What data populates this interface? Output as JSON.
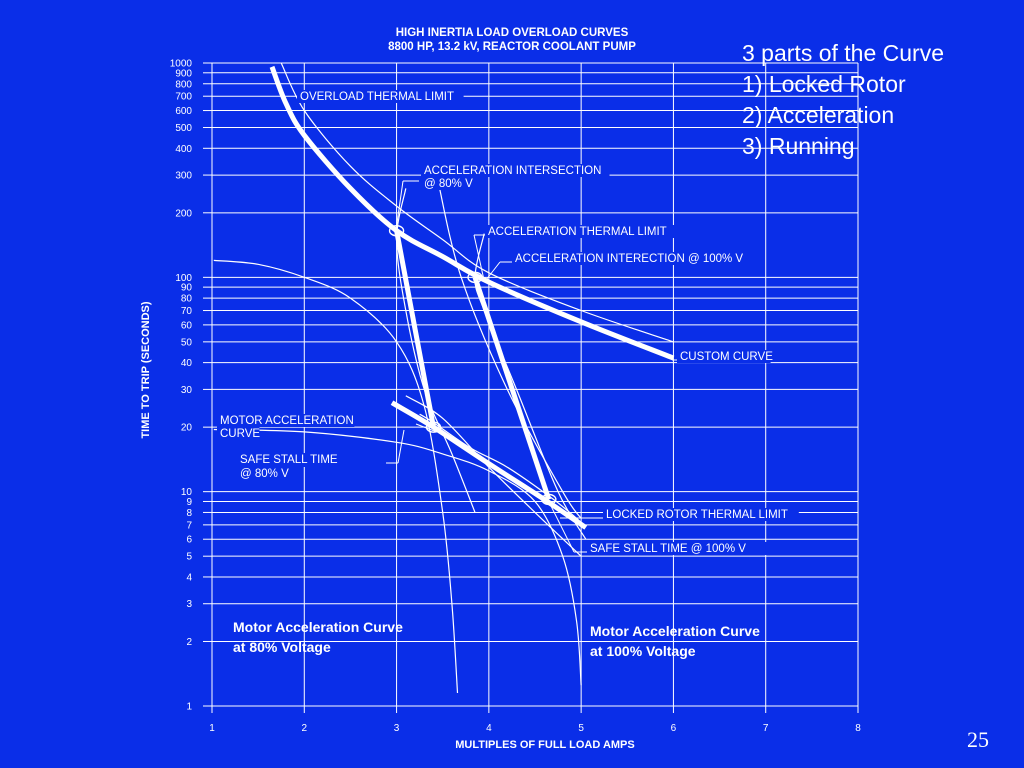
{
  "slide": {
    "notes": [
      "3 parts of the Curve",
      "1) Locked Rotor",
      "2) Acceleration",
      "3) Running"
    ],
    "page_number": "25"
  },
  "colors": {
    "background": "#0a2ee8",
    "foreground": "#ffffff"
  },
  "chart_data": {
    "type": "line",
    "title": "HIGH INERTIA LOAD OVERLOAD CURVES",
    "subtitle": "8800 HP, 13.2 kV, REACTOR COOLANT PUMP",
    "xlabel": "MULTIPLES OF FULL LOAD AMPS",
    "ylabel": "TIME TO TRIP (SECONDS)",
    "x_scale": "linear",
    "y_scale": "log",
    "xlim": [
      1,
      8
    ],
    "ylim": [
      1,
      1000
    ],
    "grid": true,
    "x_ticks": [
      "1",
      "2",
      "3",
      "4",
      "5",
      "6",
      "7",
      "8"
    ],
    "y_ticks": [
      {
        "v": 1,
        "label": "1"
      },
      {
        "v": 2,
        "label": "2"
      },
      {
        "v": 3,
        "label": "3"
      },
      {
        "v": 4,
        "label": "4"
      },
      {
        "v": 5,
        "label": "5"
      },
      {
        "v": 6,
        "label": "6"
      },
      {
        "v": 7,
        "label": "7"
      },
      {
        "v": 8,
        "label": "8"
      },
      {
        "v": 9,
        "label": "9"
      },
      {
        "v": 10,
        "label": "10"
      },
      {
        "v": 20,
        "label": "20"
      },
      {
        "v": 30,
        "label": "30"
      },
      {
        "v": 40,
        "label": "40"
      },
      {
        "v": 50,
        "label": "50"
      },
      {
        "v": 60,
        "label": "60"
      },
      {
        "v": 70,
        "label": "70"
      },
      {
        "v": 80,
        "label": "80"
      },
      {
        "v": 90,
        "label": "90"
      },
      {
        "v": 100,
        "label": "100"
      },
      {
        "v": 200,
        "label": "200"
      },
      {
        "v": 300,
        "label": "300"
      },
      {
        "v": 400,
        "label": "400"
      },
      {
        "v": 500,
        "label": "500"
      },
      {
        "v": 600,
        "label": "600"
      },
      {
        "v": 700,
        "label": "700"
      },
      {
        "v": 800,
        "label": "800"
      },
      {
        "v": 900,
        "label": "900"
      },
      {
        "v": 1000,
        "label": "1000"
      }
    ],
    "series": [
      {
        "name": "CUSTOM CURVE",
        "weight": "bold",
        "points": [
          [
            1.65,
            960
          ],
          [
            1.8,
            650
          ],
          [
            2.0,
            460
          ],
          [
            2.5,
            260
          ],
          [
            3.0,
            165
          ],
          [
            3.5,
            125
          ],
          [
            4.0,
            95
          ],
          [
            5.0,
            62
          ],
          [
            6.0,
            42
          ]
        ]
      },
      {
        "name": "LOCKED ROTOR",
        "weight": "bold",
        "points": [
          [
            3.0,
            165
          ],
          [
            3.4,
            20
          ]
        ]
      },
      {
        "name": "LOCKED ROTOR",
        "weight": "bold",
        "points": [
          [
            3.85,
            100
          ],
          [
            4.65,
            9.2
          ]
        ]
      },
      {
        "name": "ACCELERATION",
        "weight": "bold",
        "points": [
          [
            2.95,
            26
          ],
          [
            3.4,
            20
          ],
          [
            4.0,
            13.5
          ],
          [
            4.6,
            9.2
          ],
          [
            5.05,
            6.8
          ]
        ]
      },
      {
        "name": "OVERLOAD THERMAL LIMIT",
        "weight": "thin",
        "points": [
          [
            1.75,
            1000
          ],
          [
            2.0,
            600
          ],
          [
            2.5,
            330
          ],
          [
            3.0,
            215
          ],
          [
            3.5,
            150
          ],
          [
            4.0,
            105
          ],
          [
            5.0,
            70
          ],
          [
            6.0,
            50
          ]
        ]
      },
      {
        "name": "ACCELERATION THERMAL LIMIT",
        "weight": "thin",
        "points": [
          [
            3.45,
            280
          ],
          [
            3.7,
            100
          ],
          [
            4.2,
            30
          ],
          [
            4.8,
            10
          ],
          [
            5.0,
            7.5
          ]
        ]
      },
      {
        "name": "LOCKED ROTOR THERMAL LIMIT",
        "weight": "thin",
        "points": [
          [
            3.25,
            23
          ],
          [
            3.4,
            21
          ],
          [
            3.8,
            16
          ],
          [
            4.2,
            13
          ],
          [
            4.7,
            9.2
          ],
          [
            5.0,
            7.2
          ]
        ]
      },
      {
        "name": "Motor Acceleration Curve at 80% Voltage",
        "weight": "thin",
        "points": [
          [
            1.02,
            120
          ],
          [
            1.5,
            115
          ],
          [
            2.0,
            100
          ],
          [
            2.5,
            80
          ],
          [
            3.0,
            50
          ],
          [
            3.3,
            25
          ],
          [
            3.5,
            8
          ],
          [
            3.6,
            3
          ],
          [
            3.66,
            1.15
          ]
        ]
      },
      {
        "name": "Motor Acceleration Curve at 100% Voltage",
        "weight": "thin",
        "points": [
          [
            1.02,
            19.5
          ],
          [
            2.0,
            19
          ],
          [
            3.0,
            17
          ],
          [
            3.5,
            15
          ],
          [
            4.0,
            12.5
          ],
          [
            4.5,
            9
          ],
          [
            4.8,
            5
          ],
          [
            4.95,
            2.5
          ],
          [
            5.0,
            1.25
          ]
        ]
      },
      {
        "name": "ACCELERATION INTERSECTION @ 80% V",
        "weight": "thin",
        "points": [
          [
            3.1,
            260
          ],
          [
            3.0,
            150
          ],
          [
            3.1,
            70
          ],
          [
            3.3,
            30
          ],
          [
            3.6,
            15
          ],
          [
            3.85,
            8
          ]
        ]
      },
      {
        "name": "ACCELERATION INTERECTION @ 100% V",
        "weight": "thin",
        "points": [
          [
            3.95,
            160
          ],
          [
            3.85,
            100
          ],
          [
            3.95,
            70
          ],
          [
            4.3,
            30
          ],
          [
            4.75,
            10
          ],
          [
            5.05,
            6
          ]
        ]
      },
      {
        "name": "SAFE STALL TIME @ 100% V",
        "weight": "thin",
        "points": [
          [
            3.1,
            28
          ],
          [
            3.5,
            22
          ],
          [
            4.0,
            13
          ],
          [
            4.5,
            8
          ],
          [
            5.0,
            5
          ]
        ]
      }
    ],
    "markers": [
      {
        "label": "ACCELERATION INTERSECTION @ 80% V",
        "x": 3.0,
        "y": 165
      },
      {
        "label": "ACCELERATION INTERECTION @ 100% V",
        "x": 3.85,
        "y": 100
      },
      {
        "label": "SAFE STALL TIME @ 80% V",
        "x": 3.4,
        "y": 20
      },
      {
        "label": "SAFE STALL TIME @ 100% V",
        "x": 4.65,
        "y": 9.2
      }
    ],
    "annotations": [
      {
        "id": "overload",
        "text": [
          "OVERLOAD THERMAL LIMIT"
        ]
      },
      {
        "id": "accel80",
        "text": [
          "ACCELERATION INTERSECTION",
          "@ 80% V"
        ]
      },
      {
        "id": "accelthermal",
        "text": [
          "ACCELERATION THERMAL LIMIT"
        ]
      },
      {
        "id": "accel100",
        "text": [
          "ACCELERATION INTERECTION @ 100% V"
        ]
      },
      {
        "id": "custom",
        "text": [
          "CUSTOM CURVE"
        ]
      },
      {
        "id": "motoraccel",
        "text": [
          "MOTOR ACCELERATION",
          "CURVE"
        ]
      },
      {
        "id": "safestall80",
        "text": [
          "SAFE STALL TIME",
          "@ 80% V"
        ]
      },
      {
        "id": "lockedrotor",
        "text": [
          "LOCKED ROTOR THERMAL LIMIT"
        ]
      },
      {
        "id": "safestall100",
        "text": [
          "SAFE STALL TIME @ 100% V"
        ]
      }
    ],
    "curve_labels": [
      {
        "id": "mac80",
        "text": [
          "Motor Acceleration Curve",
          "at 80%  Voltage"
        ]
      },
      {
        "id": "mac100",
        "text": [
          "Motor Acceleration Curve",
          "at 100%  Voltage"
        ]
      }
    ]
  }
}
